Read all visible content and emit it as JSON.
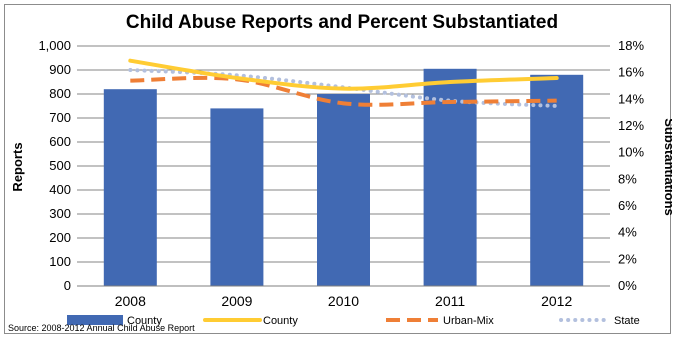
{
  "chart_data": {
    "type": "bar",
    "title": "Child Abuse Reports and Percent Substantiated",
    "categories": [
      "2008",
      "2009",
      "2010",
      "2011",
      "2012"
    ],
    "ylabel": "Reports",
    "y2label": "Substantiations",
    "ylim": [
      0,
      1000
    ],
    "y2lim": [
      0,
      18
    ],
    "yticks": [
      "0",
      "100",
      "200",
      "300",
      "400",
      "500",
      "600",
      "700",
      "800",
      "900",
      "1,000"
    ],
    "y2ticks": [
      "0%",
      "2%",
      "4%",
      "6%",
      "8%",
      "10%",
      "12%",
      "14%",
      "16%",
      "18%"
    ],
    "bars": {
      "name": "County",
      "color": "#4169b3",
      "values": [
        820,
        740,
        800,
        905,
        880
      ]
    },
    "lines": [
      {
        "name": "County",
        "color": "#ffcc33",
        "style": "solid",
        "values": [
          16.9,
          15.6,
          14.8,
          15.3,
          15.6
        ]
      },
      {
        "name": "Urban-Mix",
        "color": "#ef7f36",
        "style": "dashed",
        "values": [
          15.4,
          15.5,
          13.7,
          13.8,
          13.9
        ]
      },
      {
        "name": "State",
        "color": "#b3c0de",
        "style": "dotted",
        "values": [
          16.2,
          15.8,
          14.9,
          13.9,
          13.5
        ]
      }
    ],
    "grid": true,
    "legend_position": "bottom",
    "source": "Source: 2008-2012 Annual Child Abuse Report"
  }
}
